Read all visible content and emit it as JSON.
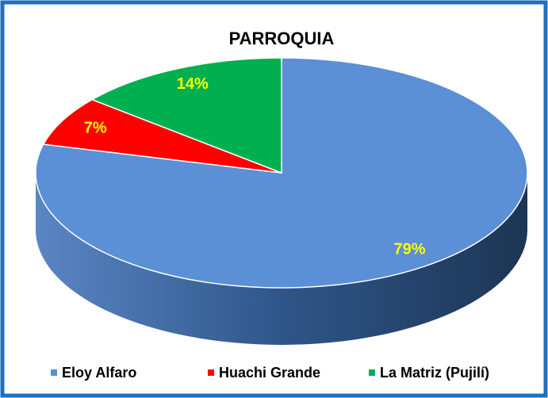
{
  "chart_data": {
    "type": "pie",
    "title": "PARROQUIA",
    "categories": [
      "Eloy Alfaro",
      "Huachi Grande",
      "La Matriz (Pujilí)"
    ],
    "values": [
      79,
      7,
      14
    ],
    "value_labels": [
      "79%",
      "7%",
      "14%"
    ],
    "colors": [
      "#5b8fd6",
      "#ff0000",
      "#00b050"
    ],
    "legend": "bottom"
  }
}
